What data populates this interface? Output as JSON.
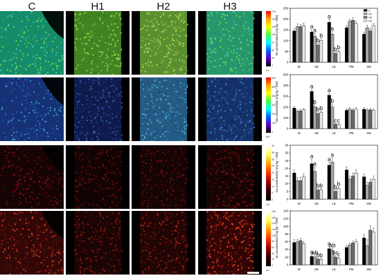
{
  "column_labels": [
    "C",
    "H1",
    "H2",
    "H3"
  ],
  "rows": [
    {
      "element": "Fe",
      "cbar_ticks": [
        "175",
        "150",
        "125",
        "100",
        "75",
        "50",
        "25",
        "0"
      ],
      "palette": "rainbow"
    },
    {
      "element": "Mn",
      "cbar_ticks": [
        "600",
        "500",
        "400",
        "300",
        "200",
        "100",
        "0"
      ],
      "palette": "rainbow"
    },
    {
      "element": "Cu",
      "cbar_ticks": [
        "40",
        "35",
        "30",
        "25",
        "20",
        "15",
        "10",
        "5",
        "0"
      ],
      "palette": "hot"
    },
    {
      "element": "Zn",
      "cbar_ticks": [
        "180",
        "160",
        "140",
        "120",
        "100",
        "80",
        "60",
        "40",
        "20",
        "0"
      ],
      "palette": "hot"
    }
  ],
  "colors": {
    "C": "#000000",
    "H1": "#a6a6a6",
    "H2": "#6b6b6b",
    "H3": "#e8e8e8"
  },
  "chart_data": [
    {
      "type": "bar",
      "ylabel": "Fe concentration (mg kg⁻¹ DW)",
      "categories": [
        "W",
        "UE",
        "LE",
        "PM",
        "SM"
      ],
      "ylim": [
        0,
        250
      ],
      "yticks": [
        0,
        50,
        100,
        150,
        200,
        250
      ],
      "legend": [
        "C",
        "H1",
        "H2",
        "H3"
      ],
      "series": [
        {
          "name": "C",
          "values": [
            145,
            140,
            185,
            160,
            130
          ],
          "errors": [
            10,
            12,
            14,
            10,
            10
          ]
        },
        {
          "name": "H1",
          "values": [
            165,
            120,
            130,
            190,
            160
          ],
          "errors": [
            12,
            14,
            12,
            10,
            12
          ]
        },
        {
          "name": "H2",
          "values": [
            165,
            80,
            40,
            195,
            145
          ],
          "errors": [
            10,
            8,
            6,
            12,
            10
          ]
        },
        {
          "name": "H3",
          "values": [
            170,
            100,
            50,
            180,
            170
          ],
          "errors": [
            12,
            10,
            6,
            10,
            10
          ]
        }
      ],
      "annotations": [
        {
          "category": "UE",
          "labels": [
            "a",
            "a",
            "b",
            "b"
          ]
        },
        {
          "category": "LE",
          "labels": [
            "a",
            "a",
            "b",
            "b"
          ]
        }
      ]
    },
    {
      "type": "bar",
      "ylabel": "Mn concentration (mg kg⁻¹ DW)",
      "categories": [
        "W",
        "UE",
        "LE",
        "PM",
        "SM"
      ],
      "ylim": [
        0,
        500
      ],
      "yticks": [
        0,
        100,
        200,
        300,
        400,
        500
      ],
      "series": [
        {
          "name": "C",
          "values": [
            190,
            345,
            310,
            170,
            180
          ],
          "errors": [
            15,
            20,
            20,
            15,
            15
          ]
        },
        {
          "name": "H1",
          "values": [
            160,
            200,
            200,
            180,
            170
          ],
          "errors": [
            15,
            20,
            30,
            15,
            15
          ]
        },
        {
          "name": "H2",
          "values": [
            165,
            140,
            40,
            170,
            175
          ],
          "errors": [
            15,
            15,
            8,
            15,
            12
          ]
        },
        {
          "name": "H3",
          "values": [
            175,
            150,
            40,
            180,
            170
          ],
          "errors": [
            12,
            15,
            8,
            15,
            12
          ]
        }
      ],
      "annotations": [
        {
          "category": "UE",
          "labels": [
            "a",
            "b",
            "b",
            "b"
          ]
        },
        {
          "category": "LE",
          "labels": [
            "a",
            "b",
            "c",
            "c"
          ]
        }
      ]
    },
    {
      "type": "bar",
      "ylabel": "Cu concentration (mg kg⁻¹ DW)",
      "categories": [
        "W",
        "UE",
        "LE",
        "PM",
        "SM"
      ],
      "ylim": [
        0,
        35
      ],
      "yticks": [
        0,
        5,
        10,
        15,
        20,
        25,
        30,
        35
      ],
      "series": [
        {
          "name": "C",
          "values": [
            17,
            23,
            22,
            19,
            14.5
          ],
          "errors": [
            2,
            3,
            2,
            2,
            2
          ]
        },
        {
          "name": "H1",
          "values": [
            12,
            18,
            24,
            13,
            9
          ],
          "errors": [
            2,
            3,
            3,
            2,
            2
          ]
        },
        {
          "name": "H2",
          "values": [
            12,
            6,
            5,
            15,
            11
          ],
          "errors": [
            2,
            1,
            1,
            2,
            2
          ]
        },
        {
          "name": "H3",
          "values": [
            14.5,
            6,
            7,
            17,
            13
          ],
          "errors": [
            2,
            1,
            1,
            2,
            2
          ]
        }
      ],
      "annotations": [
        {
          "category": "UE",
          "labels": [
            "a",
            "a",
            "b",
            "b"
          ]
        },
        {
          "category": "LE",
          "labels": [
            "a",
            "a",
            "b",
            "b"
          ]
        }
      ]
    },
    {
      "type": "bar",
      "ylabel": "Zn concentration (mg kg⁻¹ DW)",
      "categories": [
        "W",
        "UE",
        "LE",
        "PM",
        "SM"
      ],
      "ylim": [
        0,
        140
      ],
      "yticks": [
        0,
        20,
        40,
        60,
        80,
        100,
        120,
        140
      ],
      "series": [
        {
          "name": "C",
          "values": [
            58,
            22,
            42,
            45,
            70
          ],
          "errors": [
            8,
            4,
            6,
            5,
            10
          ]
        },
        {
          "name": "H1",
          "values": [
            60,
            20,
            38,
            52,
            50
          ],
          "errors": [
            6,
            4,
            5,
            5,
            15
          ]
        },
        {
          "name": "H2",
          "values": [
            63,
            15,
            20,
            57,
            90
          ],
          "errors": [
            6,
            3,
            4,
            5,
            12
          ]
        },
        {
          "name": "H3",
          "values": [
            55,
            14,
            17,
            60,
            85
          ],
          "errors": [
            5,
            3,
            3,
            5,
            10
          ]
        }
      ],
      "annotations": [
        {
          "category": "UE",
          "labels": [
            "a",
            "ab",
            "b",
            "b"
          ]
        },
        {
          "category": "LE",
          "labels": [
            "a",
            "ab",
            "bc",
            "c"
          ]
        }
      ]
    }
  ]
}
